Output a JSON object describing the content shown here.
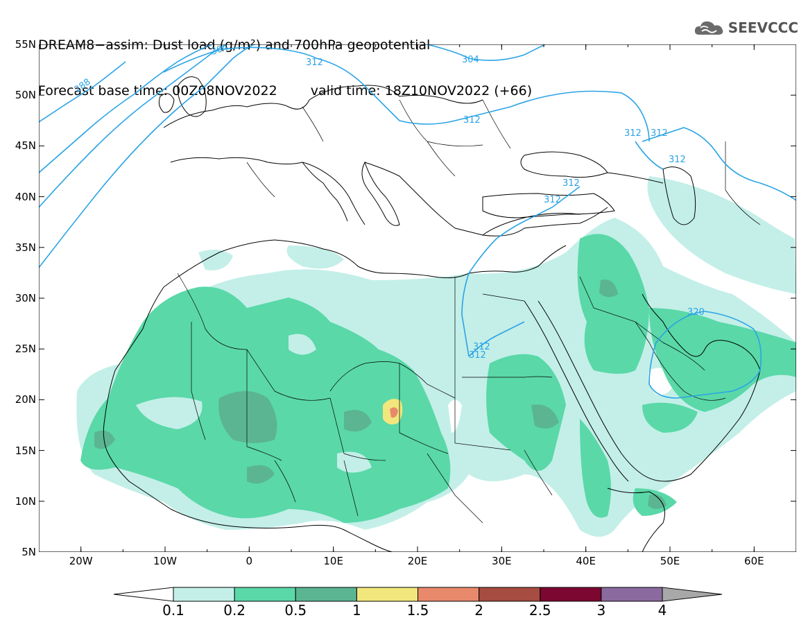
{
  "header": {
    "line1": "DREAM8−assim: Dust load (g/m²) and 700hPa geopotential",
    "base_time": "Forecast base time: 00Z08NOV2022",
    "valid_time": "valid time: 18Z10NOV2022 (+66)"
  },
  "logo": {
    "text": "SEEVCCC",
    "icon": "cloud-icon"
  },
  "map": {
    "extent": {
      "lon_min": -25,
      "lon_max": 65,
      "lat_min": 5,
      "lat_max": 55
    },
    "lat_labels": [
      "55N",
      "50N",
      "45N",
      "40N",
      "35N",
      "30N",
      "25N",
      "20N",
      "15N",
      "10N",
      "5N"
    ],
    "lon_labels": [
      "20W",
      "10W",
      "0",
      "10E",
      "20E",
      "30E",
      "40E",
      "50E",
      "60E"
    ],
    "contour_labels": [
      "288",
      "304",
      "312",
      "304",
      "312",
      "312",
      "312",
      "312",
      "312",
      "312",
      "320",
      "312",
      "312"
    ]
  },
  "colorbar": {
    "ticks": [
      "0.1",
      "0.2",
      "0.5",
      "1",
      "1.5",
      "2",
      "2.5",
      "3",
      "4"
    ],
    "colors": [
      "#c3efe8",
      "#5ad8a8",
      "#5bb592",
      "#f2e77c",
      "#e8896b",
      "#a64c40",
      "#7c0730",
      "#8a6a9f"
    ],
    "under_color": "#ffffff",
    "over_color": "#a8a8a8"
  }
}
